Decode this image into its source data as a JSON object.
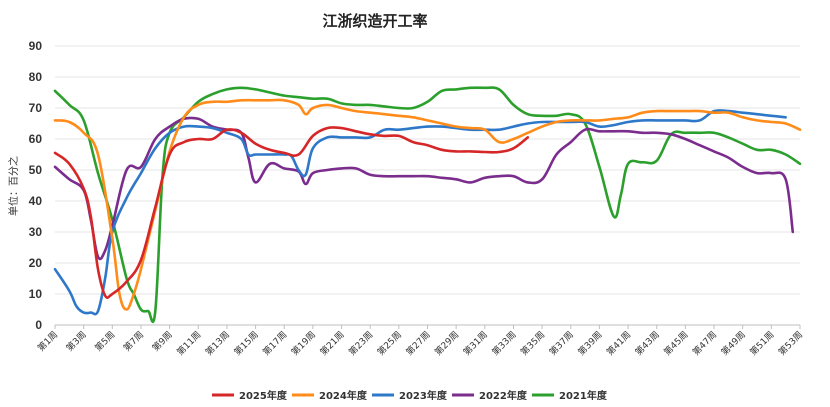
{
  "chart_data": {
    "type": "line",
    "title": "江浙织造开工率",
    "ylabel": "单位：百分之",
    "xlabel": "",
    "ylim": [
      0,
      90
    ],
    "yticks": [
      0,
      10,
      20,
      30,
      40,
      50,
      60,
      70,
      80,
      90
    ],
    "x_tick_labels": [
      "第1周",
      "第3周",
      "第5周",
      "第7周",
      "第9周",
      "第11周",
      "第13周",
      "第15周",
      "第17周",
      "第19周",
      "第21周",
      "第23周",
      "第25周",
      "第27周",
      "第29周",
      "第31周",
      "第33周",
      "第35周",
      "第37周",
      "第39周",
      "第41周",
      "第43周",
      "第45周",
      "第47周",
      "第49周",
      "第51周",
      "第53周"
    ],
    "legend_position": "bottom",
    "grid": true,
    "series": [
      {
        "name": "2025年度",
        "color": "#d62728",
        "x": [
          1,
          2,
          3,
          3.5,
          4,
          4.5,
          5,
          6,
          7,
          8,
          9,
          10,
          11,
          12,
          13,
          14,
          15,
          16,
          17,
          18,
          19,
          20,
          21,
          22,
          23,
          24,
          25,
          26,
          27,
          28,
          29,
          30,
          31,
          32,
          33,
          34
        ],
        "y": [
          55.5,
          52,
          44,
          35,
          18,
          9.5,
          10,
          14,
          21,
          38,
          55,
          59,
          60,
          60,
          63,
          62,
          58.5,
          56.5,
          55.5,
          55,
          61,
          63.5,
          63.5,
          62.5,
          61.5,
          61,
          61,
          59,
          58,
          56.5,
          56,
          56,
          55.8,
          55.8,
          57,
          60.5
        ]
      },
      {
        "name": "2024年度",
        "color": "#ff8c1a",
        "x": [
          1,
          2,
          3,
          4,
          5,
          5.5,
          6,
          6.5,
          7,
          8,
          9,
          10,
          11,
          12,
          13,
          14,
          15,
          16,
          17,
          18,
          18.5,
          19,
          20,
          21,
          22,
          23,
          24,
          25,
          26,
          27,
          28,
          29,
          30,
          31,
          32,
          33,
          34,
          35,
          36,
          37,
          38,
          39,
          40,
          41,
          42,
          43,
          44,
          45,
          46,
          47,
          48,
          49,
          50,
          51,
          52,
          53
        ],
        "y": [
          66,
          65.5,
          62,
          55,
          28,
          10,
          5,
          10,
          18,
          37,
          56,
          67,
          71,
          72,
          72,
          72.5,
          72.5,
          72.5,
          72.5,
          71,
          68,
          70,
          71,
          70,
          69,
          68.5,
          68,
          67.5,
          67,
          66,
          65,
          64,
          63.5,
          63,
          59,
          60,
          62,
          64,
          65.5,
          66,
          66,
          66,
          66.5,
          67,
          68.5,
          69,
          69,
          69,
          69,
          68.5,
          68.5,
          67,
          66,
          65.5,
          65,
          63
        ]
      },
      {
        "name": "2023年度",
        "color": "#2e78c9",
        "x": [
          1,
          2,
          2.5,
          3,
          3.5,
          4,
          4.5,
          5,
          6,
          7,
          8,
          9,
          10,
          11,
          12,
          13,
          14,
          14.5,
          15,
          16,
          17,
          17.5,
          18,
          18.5,
          19,
          20,
          21,
          22,
          23,
          24,
          25,
          26,
          27,
          28,
          29,
          30,
          31,
          32,
          33,
          34,
          35,
          36,
          37,
          38,
          39,
          40,
          41,
          42,
          43,
          44,
          45,
          46,
          47,
          48,
          49,
          50,
          51,
          52
        ],
        "y": [
          18,
          11,
          6,
          4,
          4,
          4.5,
          15,
          30,
          41,
          49,
          57,
          62,
          64,
          64,
          63.5,
          62,
          60,
          55,
          55,
          55,
          55,
          54.5,
          50,
          48.5,
          57,
          60.5,
          60.5,
          60.5,
          60.5,
          63,
          63,
          63.5,
          64,
          64,
          63.5,
          63,
          63,
          63,
          64,
          65,
          65.5,
          65.5,
          65.5,
          65.5,
          64,
          64.5,
          65.5,
          66,
          66,
          66,
          66,
          66,
          69,
          69,
          68.5,
          68,
          67.5,
          67
        ]
      },
      {
        "name": "2022年度",
        "color": "#7b2d8e",
        "x": [
          1,
          2,
          3,
          3.5,
          4,
          4.5,
          5,
          6,
          7,
          8,
          9,
          10,
          11,
          12,
          13,
          14,
          14.5,
          15,
          16,
          17,
          18,
          18.5,
          19,
          20,
          21,
          22,
          23,
          24,
          25,
          26,
          27,
          28,
          29,
          30,
          31,
          32,
          33,
          34,
          35,
          36,
          37,
          38,
          39,
          40,
          41,
          42,
          43,
          44,
          45,
          46,
          47,
          48,
          49,
          50,
          51,
          52,
          52.5
        ],
        "y": [
          51,
          47,
          43.5,
          34,
          22,
          24,
          32,
          50,
          51,
          60,
          64,
          66.5,
          66.5,
          64,
          63,
          62,
          54,
          46,
          52,
          50.5,
          49.5,
          45.5,
          49,
          50,
          50.5,
          50.5,
          48.5,
          48,
          48,
          48,
          48,
          47.5,
          47,
          46,
          47.5,
          48,
          48,
          46,
          47,
          55,
          59,
          63,
          62.5,
          62.5,
          62.5,
          62,
          62,
          61.5,
          60,
          58,
          56,
          54,
          51,
          49,
          49,
          47,
          30
        ]
      },
      {
        "name": "2021年度",
        "color": "#2ca02c",
        "x": [
          1,
          2,
          3,
          4,
          5,
          6,
          6.5,
          7,
          7.5,
          8,
          8.5,
          9,
          10,
          11,
          12,
          13,
          14,
          15,
          16,
          17,
          18,
          19,
          20,
          21,
          22,
          23,
          24,
          25,
          26,
          27,
          28,
          29,
          30,
          31,
          32,
          33,
          34,
          35,
          36,
          37,
          38,
          39,
          40,
          40.5,
          41,
          42,
          43,
          44,
          45,
          46,
          47,
          48,
          49,
          50,
          51,
          52,
          53
        ],
        "y": [
          75.5,
          71,
          66,
          49,
          34,
          15,
          10,
          5,
          4.5,
          4.5,
          48,
          62,
          67,
          72,
          74.5,
          76,
          76.5,
          76,
          75,
          74,
          73.5,
          73,
          73,
          71.5,
          71,
          71,
          70.5,
          70,
          70,
          72,
          75.5,
          76,
          76.5,
          76.5,
          76,
          71,
          68,
          67.5,
          67.5,
          68,
          65,
          51,
          35,
          42,
          52,
          52.5,
          53,
          61.5,
          62,
          62,
          62,
          60.5,
          58.5,
          56.5,
          56.5,
          55,
          52
        ]
      }
    ]
  }
}
